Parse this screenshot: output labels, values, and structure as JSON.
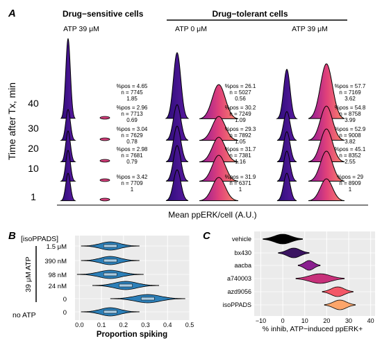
{
  "panel_labels": {
    "a": "A",
    "b": "B",
    "c": "C"
  },
  "chart_data": [
    {
      "panel": "A",
      "type": "ridgeline",
      "group_headers": {
        "sensitive": "Drug−sensitive cells",
        "tolerant": "Drug−tolerant cells"
      },
      "column_labels": [
        "ATP 39 μM",
        "ATP 0 μM",
        "ATP 39 μM"
      ],
      "xlabel": "Mean ppERK/cell (A.U.)",
      "ylabel": "Time after Tx, min",
      "y_ticks": [
        "40",
        "30",
        "20",
        "10",
        "1"
      ],
      "colors": {
        "low": "#3b0f8c",
        "high": "#f06a6a"
      },
      "columns": [
        {
          "label": "ATP 39 μM",
          "annotations": [
            {
              "time": "40",
              "pos": "%pos = 4.65",
              "n": "n = 7745",
              "ratio": "1.85"
            },
            {
              "time": "30",
              "pos": "%pos = 2.96",
              "n": "n = 7713",
              "ratio": "0.69"
            },
            {
              "time": "20",
              "pos": "%pos = 3.04",
              "n": "n = 7629",
              "ratio": "0.78"
            },
            {
              "time": "10",
              "pos": "%pos = 2.98",
              "n": "n = 7681",
              "ratio": "0.79"
            },
            {
              "time": "1",
              "pos": "%pos = 3.42",
              "n": "n = 7709",
              "ratio": "1"
            }
          ]
        },
        {
          "label": "ATP 0 μM",
          "annotations": [
            {
              "time": "40",
              "pos": "%pos = 26.1",
              "n": "n = 5027",
              "ratio": "0.56"
            },
            {
              "time": "30",
              "pos": "%pos = 30.2",
              "n": "n = 7249",
              "ratio": "1.09"
            },
            {
              "time": "20",
              "pos": "%pos = 29.3",
              "n": "n = 7892",
              "ratio": "1.05"
            },
            {
              "time": "10",
              "pos": "%pos = 31.7",
              "n": "n = 7381",
              "ratio": "1.16"
            },
            {
              "time": "1",
              "pos": "%pos = 31.9",
              "n": "n = 6371",
              "ratio": "1"
            }
          ]
        },
        {
          "label": "ATP 39 μM",
          "annotations": [
            {
              "time": "40",
              "pos": "%pos = 57.7",
              "n": "n = 7169",
              "ratio": "3.62"
            },
            {
              "time": "30",
              "pos": "%pos = 54.8",
              "n": "n = 8758",
              "ratio": "3.99"
            },
            {
              "time": "20",
              "pos": "%pos = 52.9",
              "n": "n = 9008",
              "ratio": "3.82"
            },
            {
              "time": "10",
              "pos": "%pos = 45.1",
              "n": "n = 8352",
              "ratio": "2.55"
            },
            {
              "time": "1",
              "pos": "%pos = 29",
              "n": "n = 8909",
              "ratio": "1"
            }
          ]
        }
      ]
    },
    {
      "panel": "B",
      "type": "violin",
      "xlabel": "Proportion spiking",
      "header": "[isoPPADS]",
      "bracket_label": "39 μM ATP",
      "no_atp_label": "no ATP",
      "categories": [
        "1.5 μM",
        "390 nM",
        "98 nM",
        "24 nM",
        "0",
        "0"
      ],
      "medians": [
        0.14,
        0.14,
        0.14,
        0.21,
        0.31,
        0.14
      ],
      "x_ticks": [
        "0.0",
        "0.1",
        "0.2",
        "0.3",
        "0.4",
        "0.5"
      ],
      "xlim": [
        -0.02,
        0.5
      ],
      "color": "#2c7fb8"
    },
    {
      "panel": "C",
      "type": "violin",
      "xlabel": "% inhib, ATP−induced ppERK+",
      "categories": [
        "vehicle",
        "bx430",
        "aacba",
        "a740003",
        "azd9056",
        "isoPPADS"
      ],
      "centers": [
        0,
        5,
        12,
        17,
        25,
        26
      ],
      "x_ticks": [
        "−10",
        "0",
        "10",
        "20",
        "30",
        "40"
      ],
      "xlim": [
        -13,
        42
      ],
      "colors": [
        "#000000",
        "#3a1461",
        "#8a1f8f",
        "#c7317a",
        "#f35868",
        "#fca56a"
      ]
    }
  ]
}
